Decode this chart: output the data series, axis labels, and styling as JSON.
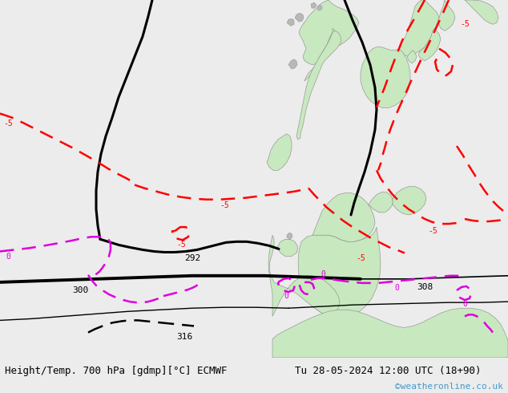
{
  "title_left": "Height/Temp. 700 hPa [gdmp][°C] ECMWF",
  "title_right": "Tu 28-05-2024 12:00 UTC (18+90)",
  "credit": "©weatheronline.co.uk",
  "fig_width": 6.34,
  "fig_height": 4.9,
  "dpi": 100,
  "title_fontsize": 9,
  "credit_fontsize": 8,
  "credit_color": "#4499cc",
  "map_bg": "#dcdcdc",
  "land_green": "#c8e8c0",
  "land_gray": "#b8b8b8",
  "sea_color": "#d8d8d8"
}
